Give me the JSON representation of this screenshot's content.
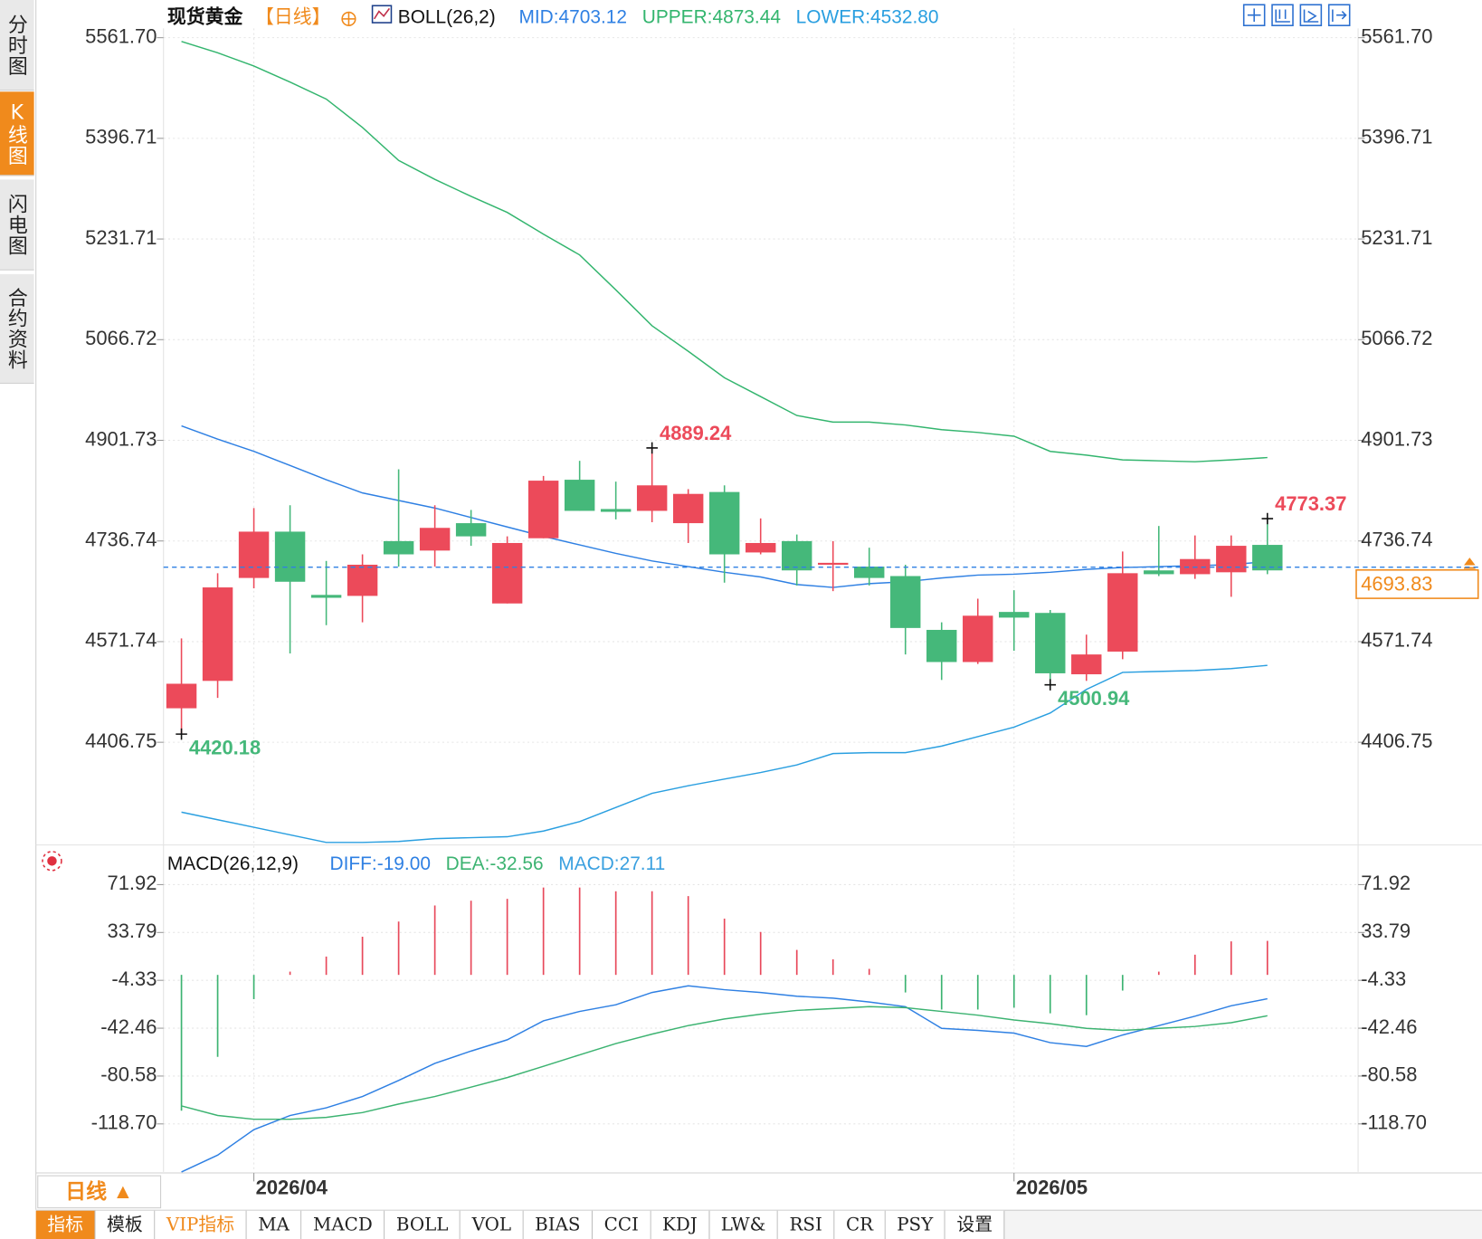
{
  "chart_data": [
    {
      "type": "candlestick",
      "title": "现货黄金",
      "period": "【日线】",
      "indicator": "BOLL(26,2)",
      "categories": [
        null,
        null,
        "2026/04",
        null,
        null,
        null,
        null,
        null,
        null,
        null,
        null,
        null,
        null,
        null,
        null,
        null,
        null,
        null,
        null,
        null,
        null,
        null,
        null,
        "2026/05",
        null,
        null,
        null,
        null,
        null,
        null,
        null
      ],
      "open": [
        4462.5,
        4507.4,
        4676.1,
        4752.0,
        4648.3,
        4646.7,
        4736.5,
        4721.0,
        4765.9,
        4634.3,
        4741.2,
        4837.1,
        4789.1,
        4786.1,
        4765.9,
        4817.0,
        4717.9,
        4736.5,
        4697.8,
        4694.7,
        4679.2,
        4591.0,
        4538.3,
        4620.4,
        4618.8,
        4518.2,
        4555.4,
        4688.5,
        4682.3,
        4685.4,
        4730.3
      ],
      "high": [
        4577.0,
        4683.9,
        4790.7,
        4795.3,
        4704.0,
        4714.8,
        4854.2,
        4795.3,
        4787.6,
        4744.3,
        4843.3,
        4868.1,
        4834.0,
        4889.24,
        4821.7,
        4827.9,
        4773.7,
        4747.3,
        4736.5,
        4725.7,
        4697.8,
        4603.4,
        4642.1,
        4656.0,
        4623.5,
        4583.2,
        4719.5,
        4761.3,
        4745.8,
        4745.8,
        4773.37
      ],
      "low": [
        4420.18,
        4479.5,
        4659.1,
        4552.3,
        4598.7,
        4603.4,
        4694.7,
        4694.7,
        4728.8,
        4634.3,
        4741.2,
        4786.1,
        4772.1,
        4767.5,
        4733.4,
        4668.4,
        4714.8,
        4663.7,
        4654.5,
        4663.7,
        4550.7,
        4508.9,
        4535.2,
        4556.9,
        4500.94,
        4507.4,
        4543.0,
        4679.2,
        4674.6,
        4645.2,
        4682.3
      ],
      "close": [
        4502.7,
        4660.6,
        4752.0,
        4669.9,
        4643.6,
        4697.8,
        4714.8,
        4758.2,
        4744.3,
        4733.4,
        4835.6,
        4786.1,
        4784.5,
        4827.9,
        4813.9,
        4714.8,
        4733.4,
        4688.5,
        4700.9,
        4676.1,
        4594.1,
        4538.3,
        4614.2,
        4611.1,
        4519.8,
        4550.7,
        4683.9,
        4682.3,
        4707.1,
        4728.8,
        4688.5
      ],
      "up_color": "#ec4a5a",
      "down_color": "#45b87a",
      "series": [
        {
          "label": "MID:4703.12",
          "color": "#2f80e3",
          "values": [
            4925.4,
            4903.7,
            4883.6,
            4860.4,
            4837.1,
            4815.5,
            4803.1,
            4790.7,
            4775.2,
            4759.7,
            4744.3,
            4730.3,
            4716.4,
            4704.0,
            4694.7,
            4685.4,
            4677.7,
            4665.3,
            4660.6,
            4666.8,
            4669.9,
            4676.1,
            4680.8,
            4682.3,
            4685.4,
            4690.1,
            4693.2,
            4694.7,
            4696.3,
            4697.8,
            4703.12
          ]
        },
        {
          "label": "UPPER:4873.44",
          "color": "#33b56e",
          "values": [
            5555.5,
            5536.9,
            5515.3,
            5488.9,
            5461.1,
            5414.6,
            5360.4,
            5329.5,
            5301.6,
            5275.3,
            5239.7,
            5205.6,
            5148.3,
            5089.5,
            5047.7,
            5004.3,
            4973.4,
            4942.4,
            4931.6,
            4931.6,
            4926.9,
            4919.2,
            4914.6,
            4908.4,
            4883.6,
            4877.4,
            4869.7,
            4868.1,
            4866.6,
            4869.7,
            4873.44
          ]
        },
        {
          "label": "LOWER:4532.80",
          "color": "#2a9fe0",
          "values": [
            4292.2,
            4279.8,
            4267.4,
            4255.0,
            4242.6,
            4242.6,
            4244.2,
            4248.8,
            4250.4,
            4251.9,
            4261.2,
            4276.7,
            4299.9,
            4323.1,
            4335.5,
            4346.4,
            4357.2,
            4369.6,
            4388.2,
            4389.7,
            4389.7,
            4400.5,
            4416.0,
            4431.5,
            4454.7,
            4493.4,
            4521.3,
            4522.9,
            4524.4,
            4527.5,
            4532.8
          ]
        }
      ],
      "ylim": [
        4240,
        5577
      ],
      "yticks": [
        {
          "value": 5561.7,
          "label": "5561.70"
        },
        5396.71,
        5231.71,
        5066.72,
        4901.73,
        4736.74,
        4571.74,
        4406.75
      ],
      "grid": true,
      "last_price": 4693.83,
      "annotations": [
        "4889.24",
        "4420.18",
        "4500.94",
        "4773.37"
      ]
    },
    {
      "type": "macd",
      "title": "MACD(26,12,9)",
      "series": [
        {
          "label": "DIFF:-19.00",
          "color": "#2f80e3",
          "values": [
            -157,
            -143.6,
            -123.3,
            -112.0,
            -105.9,
            -96.9,
            -84.1,
            -70.5,
            -60.7,
            -51.7,
            -36.6,
            -29.1,
            -23.8,
            -14.0,
            -8.7,
            -11.8,
            -14.0,
            -17.0,
            -18.5,
            -21.6,
            -25.3,
            -42.6,
            -44.2,
            -46.4,
            -54.0,
            -57.0,
            -47.9,
            -40.4,
            -32.9,
            -24.6,
            -19.0
          ]
        },
        {
          "label": "DEA:-32.56",
          "color": "#3cb371",
          "values": [
            -104.4,
            -112.0,
            -115.0,
            -115.0,
            -113.5,
            -109.7,
            -102.9,
            -96.9,
            -89.4,
            -81.8,
            -72.8,
            -63.7,
            -54.7,
            -47.2,
            -40.4,
            -35.1,
            -31.3,
            -28.3,
            -26.8,
            -25.3,
            -26.1,
            -29.1,
            -32.1,
            -35.9,
            -38.9,
            -42.6,
            -44.2,
            -42.6,
            -41.1,
            -38.1,
            -32.56
          ]
        }
      ],
      "histogram": {
        "label": "MACD:27.11",
        "color": "#3aa0e0",
        "up_color": "#e8485a",
        "down_color": "#3cb371",
        "values": [
          -108.2,
          -65.3,
          -19.3,
          2.6,
          14.6,
          30.4,
          42.5,
          55.3,
          59.1,
          60.6,
          69.6,
          69.6,
          66.6,
          66.6,
          62.8,
          44.8,
          34.2,
          19.9,
          12.4,
          4.8,
          -14.0,
          -27.6,
          -27.6,
          -26.1,
          -30.6,
          -32.1,
          -12.5,
          2.6,
          16.1,
          26.7,
          27.11
        ]
      },
      "ylim": [
        -157,
        99
      ],
      "yticks": [
        71.92,
        33.79,
        -4.33,
        -42.46,
        -80.58,
        {
          "value": -118.7,
          "label": "-118.70"
        }
      ],
      "grid": true
    }
  ],
  "ui": {
    "sidebar": [
      "分时图",
      "K线图",
      "闪电图",
      "合约资料"
    ],
    "period_button": "日线 ▲",
    "tabs": [
      "指标",
      "模板",
      "VIP指标",
      "MA",
      "MACD",
      "BOLL",
      "VOL",
      "BIAS",
      "CCI",
      "KDJ",
      "LW&",
      "RSI",
      "CR",
      "PSY",
      "设置"
    ]
  }
}
